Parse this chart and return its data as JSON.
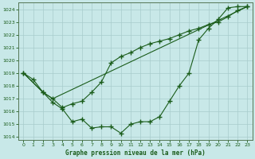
{
  "title": "Graphe pression niveau de la mer (hPa)",
  "bg_color": "#c8e8e8",
  "grid_color": "#a8cccc",
  "line_color": "#1a5c1a",
  "xlim": [
    -0.5,
    23.5
  ],
  "ylim": [
    1013.8,
    1024.5
  ],
  "yticks": [
    1014,
    1015,
    1016,
    1017,
    1018,
    1019,
    1020,
    1021,
    1022,
    1023,
    1024
  ],
  "xticks": [
    0,
    1,
    2,
    3,
    4,
    5,
    6,
    7,
    8,
    9,
    10,
    11,
    12,
    13,
    14,
    15,
    16,
    17,
    18,
    19,
    20,
    21,
    22,
    23
  ],
  "series1": {
    "x": [
      0,
      1,
      2,
      3,
      4,
      5,
      6,
      7,
      8,
      9,
      10,
      11,
      12,
      13,
      14,
      15,
      16,
      17,
      18,
      19,
      20,
      21,
      22,
      23
    ],
    "y": [
      1019.0,
      1018.5,
      1017.5,
      1016.7,
      1016.2,
      1015.2,
      1015.4,
      1014.7,
      1014.8,
      1014.8,
      1014.3,
      1015.0,
      1015.2,
      1015.2,
      1015.6,
      1016.8,
      1018.0,
      1019.0,
      1021.6,
      1022.5,
      1023.2,
      1024.1,
      1024.2,
      1024.2
    ]
  },
  "series2": {
    "x": [
      0,
      2,
      3,
      4,
      5,
      6,
      7,
      8,
      9,
      10,
      11,
      12,
      13,
      14,
      15,
      16,
      17,
      18,
      19,
      20,
      21,
      22,
      23
    ],
    "y": [
      1019.0,
      1017.5,
      1017.0,
      1016.3,
      1016.6,
      1016.8,
      1017.5,
      1018.3,
      1019.8,
      1020.3,
      1020.6,
      1021.0,
      1021.3,
      1021.5,
      1021.7,
      1022.0,
      1022.3,
      1022.5,
      1022.8,
      1023.0,
      1023.4,
      1023.9,
      1024.2
    ]
  },
  "series3": {
    "x": [
      0,
      2,
      3,
      23
    ],
    "y": [
      1019.0,
      1017.5,
      1017.0,
      1024.2
    ]
  }
}
